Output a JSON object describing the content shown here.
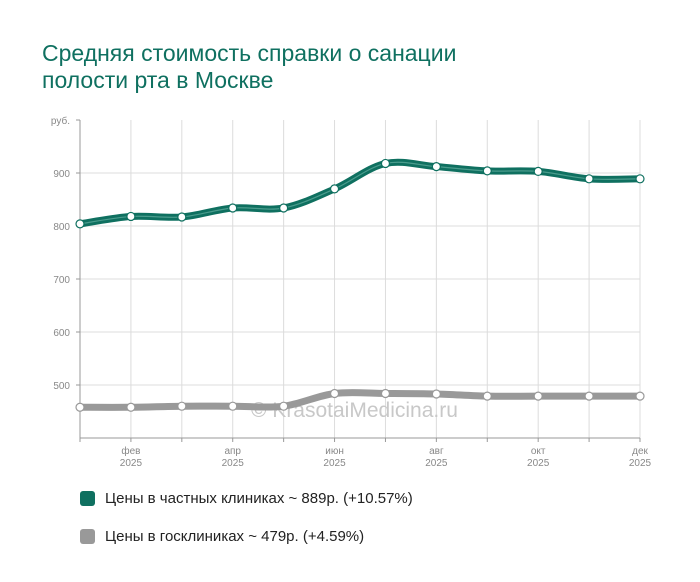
{
  "title_lines": [
    "Средняя стоимость справки о санации",
    "полости рта в Москве"
  ],
  "watermark": "© KrasotaiMedicina.ru",
  "chart_data": {
    "type": "line",
    "title": "Средняя стоимость справки о санации полости рта в Москве",
    "ylabel": "руб.",
    "ylim": [
      400,
      1000
    ],
    "yticks": [
      500,
      600,
      700,
      800,
      900
    ],
    "x_ticks": [
      {
        "index": 1,
        "month": "фев",
        "year": "2025"
      },
      {
        "index": 3,
        "month": "апр",
        "year": "2025"
      },
      {
        "index": 5,
        "month": "июн",
        "year": "2025"
      },
      {
        "index": 7,
        "month": "авг",
        "year": "2025"
      },
      {
        "index": 9,
        "month": "окт",
        "year": "2025"
      },
      {
        "index": 11,
        "month": "дек",
        "year": "2025"
      }
    ],
    "n_points": 12,
    "grid": true,
    "legend_position": "bottom",
    "series": [
      {
        "name": "Цены в частных клиниках ~ 889р. (+10.57%)",
        "color": "#0f7060",
        "values": [
          804,
          818,
          817,
          834,
          834,
          870,
          918,
          912,
          904,
          903,
          889,
          889
        ]
      },
      {
        "name": "Цены в госклиниках ~ 479р. (+4.59%)",
        "color": "#999999",
        "values": [
          458,
          458,
          460,
          460,
          460,
          484,
          484,
          483,
          479,
          479,
          479,
          479
        ]
      }
    ]
  }
}
